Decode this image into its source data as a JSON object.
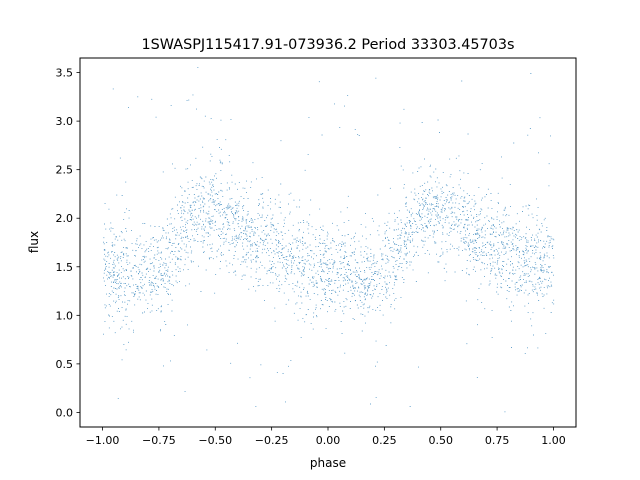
{
  "chart_data": {
    "type": "scatter",
    "title": "1SWASPJ115417.91-073936.2 Period 33303.45703s",
    "xlabel": "phase",
    "ylabel": "flux",
    "xlim": [
      -1.1,
      1.1
    ],
    "ylim": [
      -0.15,
      3.65
    ],
    "x_ticks": [
      -1.0,
      -0.75,
      -0.5,
      -0.25,
      0.0,
      0.25,
      0.5,
      0.75,
      1.0
    ],
    "x_tick_labels": [
      "−1.00",
      "−0.75",
      "−0.50",
      "−0.25",
      "0.00",
      "0.25",
      "0.50",
      "0.75",
      "1.00"
    ],
    "y_ticks": [
      0.0,
      0.5,
      1.0,
      1.5,
      2.0,
      2.5,
      3.0,
      3.5
    ],
    "y_tick_labels": [
      "0.0",
      "0.5",
      "1.0",
      "1.5",
      "2.0",
      "2.5",
      "3.0",
      "3.5"
    ],
    "grid": false,
    "marker_color": "#1f77b4",
    "phase_range": [
      -1.0,
      1.0
    ],
    "folded_curve": {
      "phase": [
        0.0,
        0.05,
        0.1,
        0.15,
        0.2,
        0.25,
        0.3,
        0.35,
        0.4,
        0.45,
        0.5,
        0.55,
        0.6,
        0.65,
        0.7,
        0.75,
        0.8,
        0.85,
        0.9,
        0.95,
        1.0
      ],
      "flux": [
        1.48,
        1.46,
        1.43,
        1.41,
        1.42,
        1.47,
        1.62,
        1.9,
        2.02,
        2.08,
        2.06,
        2.0,
        1.92,
        1.84,
        1.76,
        1.7,
        1.64,
        1.6,
        1.56,
        1.52,
        1.48
      ]
    },
    "scatter_sigma": 0.22,
    "outlier_range": [
      0.0,
      3.5
    ]
  }
}
